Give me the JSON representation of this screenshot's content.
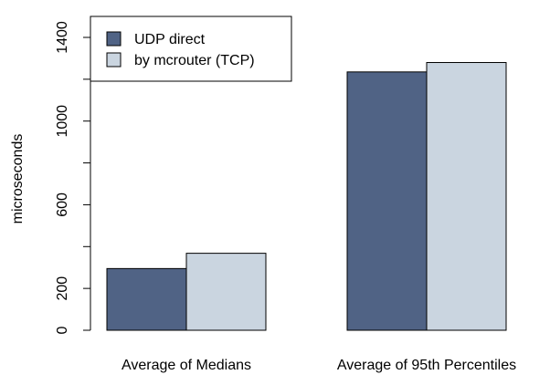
{
  "chart_data": {
    "type": "bar",
    "title": "",
    "xlabel": "",
    "ylabel": "microseconds",
    "categories": [
      "Average of Medians",
      "Average of 95th Percentiles"
    ],
    "series": [
      {
        "name": "UDP direct",
        "values": [
          295,
          1235
        ],
        "color": "#506385"
      },
      {
        "name": "by mcrouter (TCP)",
        "values": [
          368,
          1280
        ],
        "color": "#cad5e0"
      }
    ],
    "ylim": [
      0,
      1400
    ],
    "yticks": [
      0,
      200,
      400,
      600,
      800,
      1000,
      1200,
      1400
    ],
    "ytick_labels": [
      "0",
      "200",
      "",
      "600",
      "",
      "1000",
      "",
      "1400"
    ],
    "grid": false,
    "legend_position": "top-left"
  }
}
